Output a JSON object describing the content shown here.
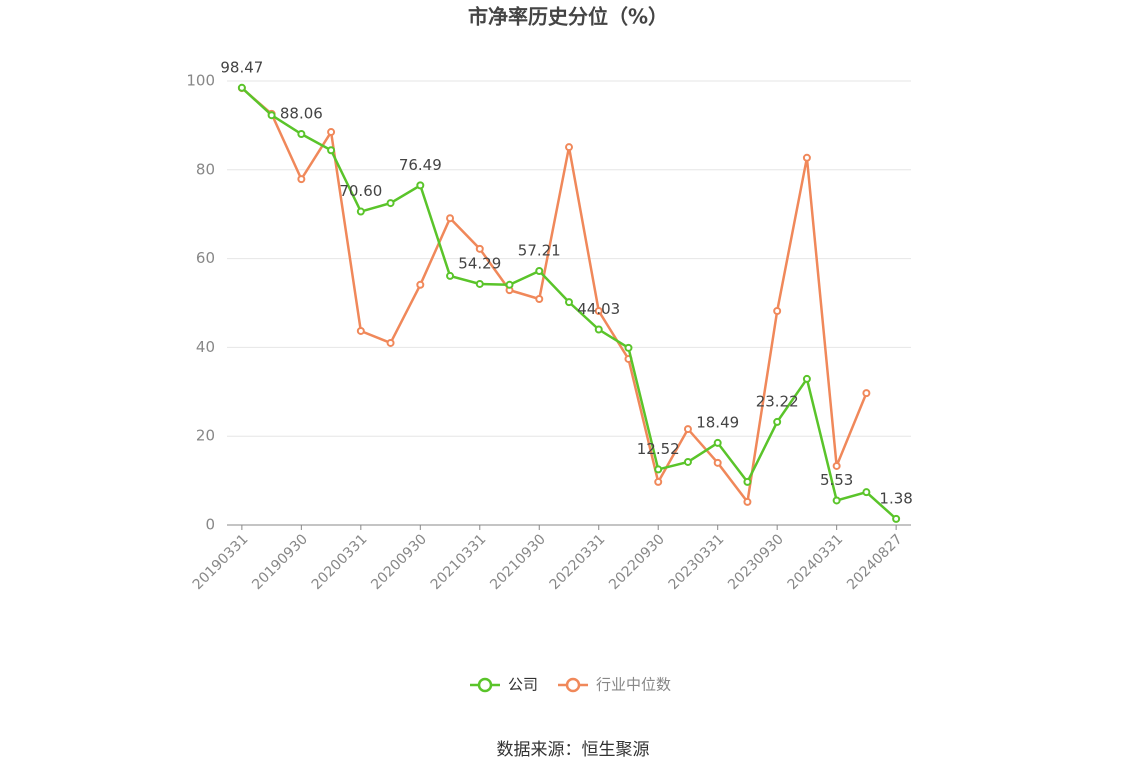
{
  "chart_data": {
    "type": "line",
    "title": "市净率历史分位（%）",
    "categories": [
      "20190331",
      null,
      "20190930",
      null,
      "20200331",
      null,
      "20200930",
      null,
      "20210331",
      null,
      "20210930",
      null,
      "20220331",
      null,
      "20220930",
      null,
      "20230331",
      null,
      "20230930",
      null,
      "20240331",
      null,
      "20240827"
    ],
    "series": [
      {
        "name": "公司",
        "color": "#5ac42a",
        "values": [
          98.47,
          92.3,
          88.06,
          84.4,
          70.6,
          72.5,
          76.49,
          56.1,
          54.29,
          54.1,
          57.21,
          50.2,
          44.03,
          39.9,
          12.52,
          14.2,
          18.49,
          9.7,
          23.22,
          32.9,
          5.53,
          7.4,
          1.38
        ],
        "value_labels": [
          "98.47",
          null,
          "88.06",
          null,
          "70.60",
          null,
          "76.49",
          null,
          "54.29",
          null,
          "57.21",
          null,
          "44.03",
          null,
          "12.52",
          null,
          "18.49",
          null,
          "23.22",
          null,
          "5.53",
          null,
          "1.38"
        ]
      },
      {
        "name": "行业中位数",
        "color": "#f0885a",
        "values": [
          98.4,
          92.6,
          77.9,
          88.5,
          43.7,
          41,
          54.1,
          69.1,
          62.2,
          52.9,
          50.9,
          85.1,
          48.2,
          37.4,
          9.7,
          21.6,
          14,
          5.2,
          48.2,
          82.7,
          13.3,
          29.7,
          null
        ]
      }
    ],
    "ylim": [
      0,
      100
    ],
    "yticks": [
      0,
      20,
      40,
      60,
      80,
      100
    ],
    "grid": true,
    "legend": "bottom",
    "source": "数据来源：恒生聚源"
  }
}
